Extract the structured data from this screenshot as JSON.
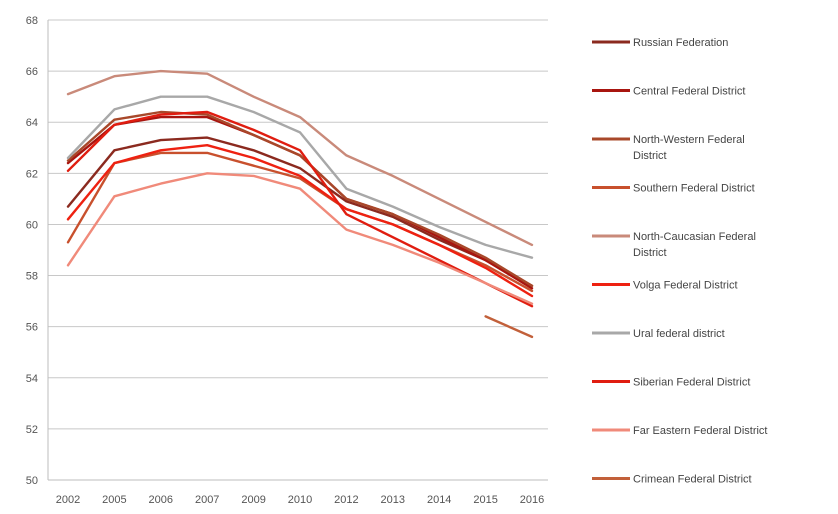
{
  "chart_data": {
    "type": "line",
    "title": "",
    "xlabel": "",
    "ylabel": "",
    "categories": [
      "2002",
      "2005",
      "2006",
      "2007",
      "2009",
      "2010",
      "2012",
      "2013",
      "2014",
      "2015",
      "2016"
    ],
    "ylim": [
      50,
      68
    ],
    "yticks": [
      "50",
      "52",
      "54",
      "56",
      "58",
      "60",
      "62",
      "64",
      "66",
      "68"
    ],
    "grid": "horizontal",
    "legend_position": "right",
    "series": [
      {
        "name": "Russian Federation",
        "color": "#8b2a1f",
        "values": [
          60.7,
          62.9,
          63.3,
          63.4,
          62.9,
          62.2,
          60.9,
          60.3,
          59.4,
          58.6,
          57.6
        ]
      },
      {
        "name": "Central Federal District",
        "color": "#a8150f",
        "values": [
          62.4,
          63.9,
          64.2,
          64.2,
          63.5,
          62.7,
          61.0,
          60.4,
          59.5,
          58.6,
          57.5
        ]
      },
      {
        "name": "North-Western Federal District",
        "color": "#a8482a",
        "values": [
          62.5,
          64.1,
          64.4,
          64.3,
          63.5,
          62.7,
          61.0,
          60.4,
          59.6,
          58.7,
          57.6
        ]
      },
      {
        "name": "Southern Federal District",
        "color": "#c8502d",
        "values": [
          59.3,
          62.4,
          62.8,
          62.8,
          62.3,
          61.8,
          60.6,
          60.0,
          59.2,
          58.4,
          57.4
        ]
      },
      {
        "name": "North-Caucasian Federal District",
        "color": "#c98a7a",
        "values": [
          65.1,
          65.8,
          66.0,
          65.9,
          65.0,
          64.2,
          62.7,
          61.9,
          61.0,
          60.1,
          59.2
        ]
      },
      {
        "name": "Volga Federal District",
        "color": "#ee2111",
        "values": [
          60.2,
          62.4,
          62.9,
          63.1,
          62.6,
          61.9,
          60.6,
          60.0,
          59.2,
          58.3,
          57.2
        ]
      },
      {
        "name": "Ural federal district",
        "color": "#a8a8a8",
        "values": [
          62.6,
          64.5,
          65.0,
          65.0,
          64.4,
          63.6,
          61.4,
          60.7,
          59.9,
          59.2,
          58.7
        ]
      },
      {
        "name": "Siberian Federal District",
        "color": "#e01d10",
        "values": [
          62.1,
          63.9,
          64.3,
          64.4,
          63.7,
          62.9,
          60.4,
          59.5,
          58.6,
          57.7,
          56.8
        ]
      },
      {
        "name": "Far Eastern Federal District",
        "color": "#f08a7a",
        "values": [
          58.4,
          61.1,
          61.6,
          62.0,
          61.9,
          61.4,
          59.8,
          59.2,
          58.5,
          57.7,
          56.9
        ]
      },
      {
        "name": "Crimean Federal District",
        "color": "#c2603a",
        "values": [
          null,
          null,
          null,
          null,
          null,
          null,
          null,
          null,
          null,
          56.4,
          55.6
        ]
      }
    ]
  }
}
